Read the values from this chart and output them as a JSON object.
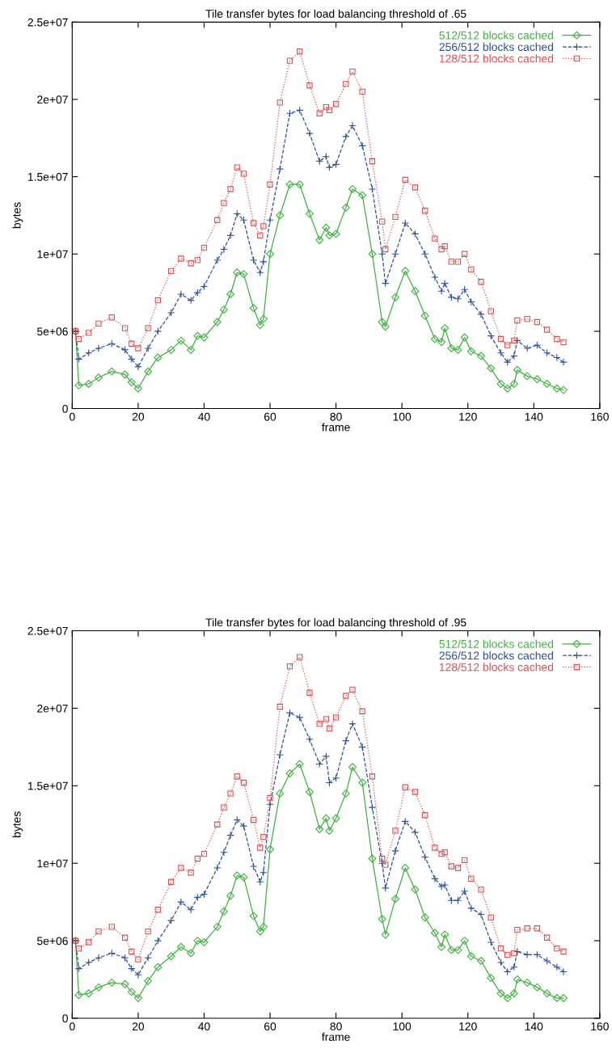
{
  "chart_data": [
    {
      "type": "line",
      "title": "Tile transfer bytes for load balancing threshold of .65",
      "xlabel": "frame",
      "ylabel": "bytes",
      "xlim": [
        0,
        160
      ],
      "xticks": [
        0,
        20,
        40,
        60,
        80,
        100,
        120,
        140,
        160
      ],
      "ylim": [
        0,
        25000000
      ],
      "yticks": [
        {
          "value": 0,
          "label": "0"
        },
        {
          "value": 5000000,
          "label": "5e+06"
        },
        {
          "value": 10000000,
          "label": "1e+07"
        },
        {
          "value": 15000000,
          "label": "1.5e+07"
        },
        {
          "value": 20000000,
          "label": "2e+07"
        },
        {
          "value": 25000000,
          "label": "2.5e+07"
        }
      ],
      "grid": false,
      "legend": "top right",
      "x": [
        1,
        2,
        5,
        8,
        12,
        16,
        18,
        20,
        23,
        26,
        30,
        33,
        36,
        38,
        40,
        44,
        46,
        48,
        50,
        52,
        55,
        57,
        58,
        60,
        63,
        66,
        69,
        72,
        75,
        77,
        78,
        80,
        83,
        85,
        88,
        91,
        94,
        95,
        98,
        101,
        104,
        107,
        110,
        112,
        113,
        115,
        117,
        119,
        121,
        124,
        127,
        130,
        132,
        134,
        135,
        138,
        141,
        144,
        147,
        149
      ],
      "series": [
        {
          "name": "512/512 blocks cached",
          "color": "#3cb43c",
          "marker": "diamond",
          "line_style": "solid",
          "values": [
            5000000.0,
            1500000.0,
            1600000.0,
            2000000.0,
            2400000.0,
            2200000.0,
            1700000.0,
            1300000.0,
            2400000.0,
            3300000.0,
            3800000.0,
            4400000.0,
            3800000.0,
            4700000.0,
            4600000.0,
            5600000.0,
            6400000.0,
            7400000.0,
            8800000.0,
            8700000.0,
            6500000.0,
            5400000.0,
            5800000.0,
            10000000.0,
            12500000.0,
            14500000.0,
            14500000.0,
            12600000.0,
            10900000.0,
            11700000.0,
            11200000.0,
            11300000.0,
            13000000.0,
            14200000.0,
            13800000.0,
            10000000.0,
            5600000.0,
            5300000.0,
            7200000.0,
            8900000.0,
            7600000.0,
            6000000.0,
            4500000.0,
            4300000.0,
            5200000.0,
            3900000.0,
            3800000.0,
            4600000.0,
            3700000.0,
            3400000.0,
            2600000.0,
            1600000.0,
            1300000.0,
            1600000.0,
            2500000.0,
            2100000.0,
            1900000.0,
            1600000.0,
            1300000.0,
            1200000.0
          ]
        },
        {
          "name": "256/512 blocks cached",
          "color": "#2c4fa0",
          "marker": "cross",
          "line_style": "dashed",
          "values": [
            5000000.0,
            3200000.0,
            3600000.0,
            3900000.0,
            4200000.0,
            3800000.0,
            3200000.0,
            2700000.0,
            3900000.0,
            5000000.0,
            6200000.0,
            7400000.0,
            7000000.0,
            7500000.0,
            7900000.0,
            9600000.0,
            10300000.0,
            11200000.0,
            12600000.0,
            12200000.0,
            9600000.0,
            8800000.0,
            9500000.0,
            12200000.0,
            15500000.0,
            19100000.0,
            19300000.0,
            17800000.0,
            16000000.0,
            16300000.0,
            15600000.0,
            15800000.0,
            17600000.0,
            18300000.0,
            17000000.0,
            14200000.0,
            10000000.0,
            8100000.0,
            10000000.0,
            12000000.0,
            11300000.0,
            10000000.0,
            8500000.0,
            7600000.0,
            8100000.0,
            7200000.0,
            7100000.0,
            7700000.0,
            6900000.0,
            6100000.0,
            4700000.0,
            3600000.0,
            3000000.0,
            3400000.0,
            4400000.0,
            3900000.0,
            4100000.0,
            3600000.0,
            3300000.0,
            3000000.0
          ]
        },
        {
          "name": "128/512 blocks cached",
          "color": "#e05050",
          "marker": "square",
          "line_style": "dotted",
          "values": [
            5000000.0,
            4500000.0,
            4900000.0,
            5500000.0,
            5900000.0,
            5200000.0,
            4200000.0,
            3900000.0,
            5200000.0,
            7000000.0,
            8900000.0,
            9700000.0,
            9400000.0,
            9600000.0,
            10400000.0,
            12200000.0,
            13300000.0,
            14200000.0,
            15600000.0,
            15200000.0,
            12000000.0,
            11200000.0,
            11800000.0,
            14500000.0,
            19800000.0,
            22500000.0,
            23100000.0,
            20900000.0,
            19100000.0,
            19500000.0,
            19300000.0,
            19700000.0,
            21000000.0,
            21800000.0,
            20500000.0,
            16000000.0,
            12100000.0,
            10300000.0,
            12400000.0,
            14800000.0,
            14300000.0,
            12800000.0,
            11000000.0,
            10300000.0,
            10500000.0,
            9500000.0,
            9500000.0,
            10000000.0,
            9000000.0,
            8200000.0,
            6300000.0,
            4500000.0,
            4100000.0,
            4400000.0,
            5700000.0,
            5800000.0,
            5600000.0,
            5100000.0,
            4500000.0,
            4300000.0
          ]
        }
      ]
    },
    {
      "type": "line",
      "title": "Tile transfer bytes for load balancing threshold of .95",
      "xlabel": "frame",
      "ylabel": "bytes",
      "xlim": [
        0,
        160
      ],
      "xticks": [
        0,
        20,
        40,
        60,
        80,
        100,
        120,
        140,
        160
      ],
      "ylim": [
        0,
        25000000
      ],
      "yticks": [
        {
          "value": 0,
          "label": "0"
        },
        {
          "value": 5000000,
          "label": "5e+06"
        },
        {
          "value": 10000000,
          "label": "1e+07"
        },
        {
          "value": 15000000,
          "label": "1.5e+07"
        },
        {
          "value": 20000000,
          "label": "2e+07"
        },
        {
          "value": 25000000,
          "label": "2.5e+07"
        }
      ],
      "grid": false,
      "legend": "top right",
      "x": [
        1,
        2,
        5,
        8,
        12,
        16,
        18,
        20,
        23,
        26,
        30,
        33,
        36,
        38,
        40,
        44,
        46,
        48,
        50,
        52,
        55,
        57,
        58,
        60,
        63,
        66,
        69,
        72,
        75,
        77,
        78,
        80,
        83,
        85,
        88,
        91,
        94,
        95,
        98,
        101,
        104,
        107,
        110,
        112,
        113,
        115,
        117,
        119,
        121,
        124,
        127,
        130,
        132,
        134,
        135,
        138,
        141,
        144,
        147,
        149
      ],
      "series": [
        {
          "name": "512/512 blocks cached",
          "color": "#3cb43c",
          "marker": "diamond",
          "line_style": "solid",
          "values": [
            5000000.0,
            1500000.0,
            1600000.0,
            2000000.0,
            2300000.0,
            2200000.0,
            1700000.0,
            1300000.0,
            2400000.0,
            3300000.0,
            4000000.0,
            4600000.0,
            4200000.0,
            5000000.0,
            4900000.0,
            5900000.0,
            6900000.0,
            7900000.0,
            9200000.0,
            9100000.0,
            6600000.0,
            5600000.0,
            5900000.0,
            10900000.0,
            14500000.0,
            15800000.0,
            16400000.0,
            14600000.0,
            12200000.0,
            12900000.0,
            12100000.0,
            12900000.0,
            14500000.0,
            16200000.0,
            15200000.0,
            10300000.0,
            6400000.0,
            5400000.0,
            7700000.0,
            9700000.0,
            8300000.0,
            6500000.0,
            5500000.0,
            4600000.0,
            5400000.0,
            4400000.0,
            4400000.0,
            5000000.0,
            4000000.0,
            3700000.0,
            2600000.0,
            1600000.0,
            1300000.0,
            1600000.0,
            2500000.0,
            2300000.0,
            2000000.0,
            1600000.0,
            1300000.0,
            1300000.0
          ]
        },
        {
          "name": "256/512 blocks cached",
          "color": "#2c4fa0",
          "marker": "cross",
          "line_style": "dashed",
          "values": [
            5000000.0,
            3200000.0,
            3600000.0,
            3900000.0,
            4200000.0,
            3900000.0,
            3200000.0,
            2800000.0,
            3900000.0,
            5000000.0,
            6300000.0,
            7500000.0,
            7000000.0,
            7800000.0,
            8000000.0,
            9700000.0,
            10700000.0,
            11800000.0,
            12800000.0,
            12400000.0,
            9800000.0,
            8800000.0,
            9400000.0,
            13800000.0,
            17000000.0,
            19700000.0,
            19400000.0,
            18000000.0,
            16400000.0,
            16900000.0,
            15200000.0,
            15500000.0,
            17900000.0,
            19000000.0,
            17500000.0,
            13600000.0,
            10000000.0,
            8400000.0,
            10800000.0,
            12700000.0,
            12000000.0,
            10400000.0,
            9000000.0,
            8500000.0,
            8600000.0,
            7600000.0,
            7600000.0,
            8200000.0,
            7100000.0,
            6700000.0,
            4900000.0,
            3600000.0,
            3000000.0,
            3300000.0,
            4300000.0,
            4100000.0,
            4100000.0,
            3700000.0,
            3300000.0,
            3000000.0
          ]
        },
        {
          "name": "128/512 blocks cached",
          "color": "#e05050",
          "marker": "square",
          "line_style": "dotted",
          "values": [
            5000000.0,
            4500000.0,
            4900000.0,
            5600000.0,
            5900000.0,
            5200000.0,
            4300000.0,
            3800000.0,
            5600000.0,
            7000000.0,
            8800000.0,
            9700000.0,
            9400000.0,
            10300000.0,
            10600000.0,
            12500000.0,
            13600000.0,
            14500000.0,
            15600000.0,
            15200000.0,
            12800000.0,
            11000000.0,
            11700000.0,
            14200000.0,
            20100000.0,
            22700000.0,
            23300000.0,
            21000000.0,
            19000000.0,
            19300000.0,
            18700000.0,
            19400000.0,
            20800000.0,
            21200000.0,
            19800000.0,
            15600000.0,
            10300000.0,
            9900000.0,
            12100000.0,
            14900000.0,
            14600000.0,
            13100000.0,
            11000000.0,
            10600000.0,
            10700000.0,
            9800000.0,
            9700000.0,
            10200000.0,
            9000000.0,
            8300000.0,
            6500000.0,
            4500000.0,
            4100000.0,
            4200000.0,
            5700000.0,
            5800000.0,
            5800000.0,
            5200000.0,
            4500000.0,
            4300000.0
          ]
        }
      ]
    }
  ]
}
